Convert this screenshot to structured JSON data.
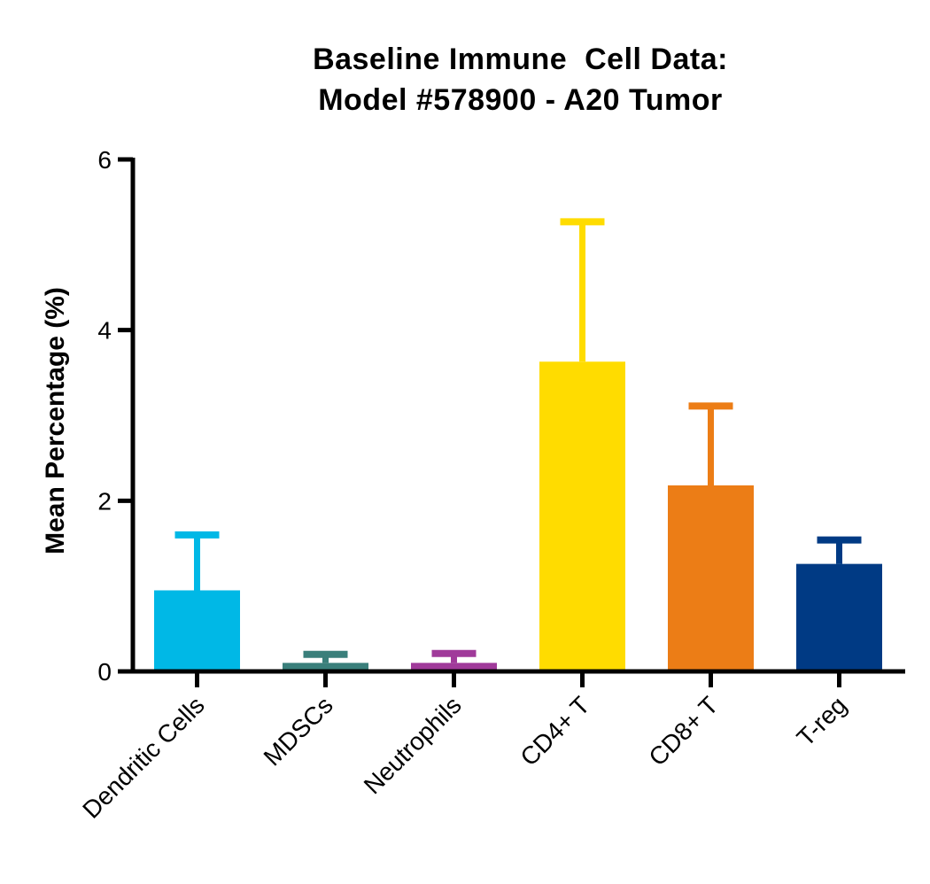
{
  "chart_data": {
    "type": "bar",
    "title_lines": [
      "Baseline Immune  Cell Data:",
      "Model #578900 - A20 Tumor"
    ],
    "xlabel": "",
    "ylabel": "Mean Percentage (%)",
    "ylim": [
      0,
      6
    ],
    "yticks": [
      0,
      2,
      4,
      6
    ],
    "ytick_labels": [
      "0",
      "2",
      "4",
      "6"
    ],
    "categories": [
      "Dendritic Cells",
      "MDSCs",
      "Neutrophils",
      "CD4+ T",
      "CD8+ T",
      "T-reg"
    ],
    "values": [
      0.95,
      0.1,
      0.1,
      3.63,
      2.18,
      1.26
    ],
    "error_upper": [
      1.6,
      0.2,
      0.21,
      5.27,
      3.11,
      1.54
    ],
    "colors": [
      "#00B8E6",
      "#3A7F7B",
      "#A03A9A",
      "#FFDC00",
      "#EC7D16",
      "#003A84"
    ],
    "grid": false,
    "legend": "none"
  }
}
